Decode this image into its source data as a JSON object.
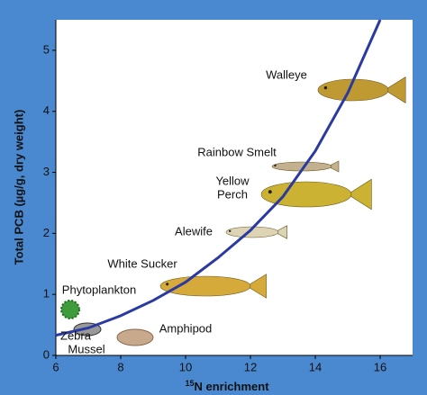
{
  "chart_data": {
    "type": "line",
    "ylabel": "Total PCB (µg/g, dry weight)",
    "xlabel_superscript": "15",
    "xlabel": "N enrichment",
    "x": [
      6,
      7,
      8,
      9,
      10,
      11,
      12,
      13,
      14,
      15,
      16
    ],
    "series": [
      {
        "color": "#2b3aa0",
        "values": [
          0.33,
          0.45,
          0.65,
          0.9,
          1.2,
          1.6,
          2.05,
          2.6,
          3.35,
          4.3,
          5.5
        ]
      }
    ],
    "xlim": [
      6,
      17
    ],
    "xticks": [
      6,
      8,
      10,
      12,
      14,
      16
    ],
    "ylim": [
      0,
      5.5
    ],
    "yticks": [
      0,
      1,
      2,
      3,
      4,
      5
    ],
    "annotations": [
      {
        "lines": [
          "Walleye"
        ]
      },
      {
        "lines": [
          "Rainbow Smelt"
        ]
      },
      {
        "lines": [
          "Yellow",
          "Perch"
        ]
      },
      {
        "lines": [
          "Alewife"
        ]
      },
      {
        "lines": [
          "White Sucker"
        ]
      },
      {
        "lines": [
          "Phytoplankton"
        ]
      },
      {
        "lines": [
          "Zebra",
          "Mussel"
        ]
      },
      {
        "lines": [
          "Amphipod"
        ]
      }
    ]
  }
}
